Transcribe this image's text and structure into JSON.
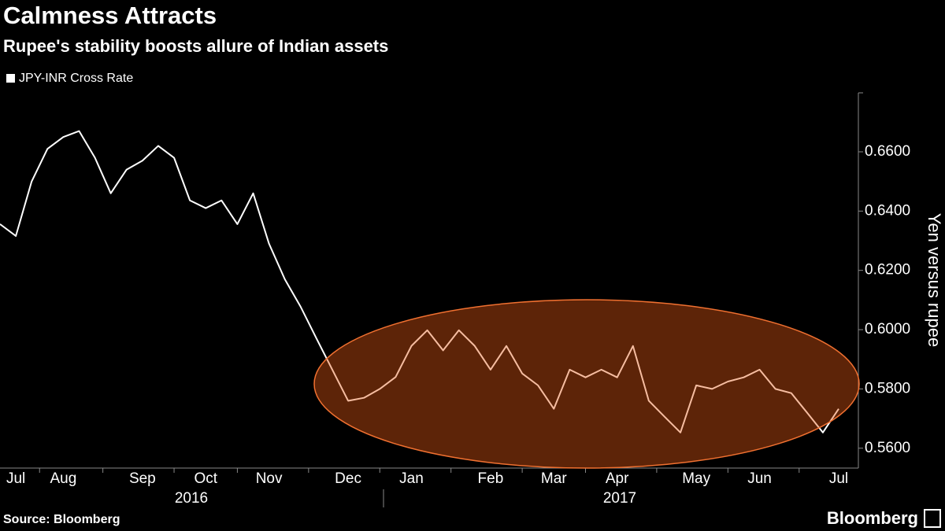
{
  "chart_data": {
    "type": "line",
    "title": "Calmness Attracts",
    "subtitle": "Rupee's stability boosts allure of Indian assets",
    "y_axis_label": "Yen versus rupee",
    "source": "Source: Bloomberg",
    "brand": "Bloomberg",
    "year_labels": [
      "2016",
      "2017"
    ],
    "categories": [
      null,
      "Jul",
      null,
      null,
      "Aug",
      null,
      null,
      null,
      null,
      "Sep",
      null,
      null,
      null,
      "Oct",
      null,
      null,
      null,
      "Nov",
      null,
      null,
      null,
      null,
      "Dec",
      null,
      null,
      null,
      "Jan",
      null,
      null,
      null,
      null,
      "Feb",
      null,
      null,
      null,
      "Mar",
      null,
      null,
      null,
      "Apr",
      null,
      null,
      null,
      null,
      "May",
      null,
      null,
      null,
      "Jun",
      null,
      null,
      null,
      null,
      "Jul"
    ],
    "series": [
      {
        "name": "JPY-INR Cross Rate",
        "color": "#ffffff",
        "values": [
          0.6356,
          0.6316,
          0.65,
          0.661,
          0.665,
          0.667,
          0.658,
          0.646,
          0.654,
          0.657,
          0.662,
          0.658,
          0.6436,
          0.641,
          0.6436,
          0.6356,
          0.646,
          0.629,
          0.617,
          0.6077,
          0.597,
          0.5865,
          0.576,
          0.577,
          0.58,
          0.584,
          0.5945,
          0.5998,
          0.593,
          0.5998,
          0.5945,
          0.5865,
          0.5945,
          0.5852,
          0.5812,
          0.5733,
          0.5865,
          0.5839,
          0.5865,
          0.5839,
          0.5945,
          0.576,
          0.5706,
          0.5653,
          0.5812,
          0.58,
          0.5825,
          0.5839,
          0.5865,
          0.58,
          0.5786,
          0.572,
          0.5653,
          0.5733
        ]
      }
    ],
    "ylim": [
      0.5533,
      0.6799
    ],
    "yticks": [
      {
        "value": 0.56,
        "label": "0.5600"
      },
      {
        "value": 0.58,
        "label": "0.5800"
      },
      {
        "value": 0.6,
        "label": "0.6000"
      },
      {
        "value": 0.62,
        "label": "0.6200"
      },
      {
        "value": 0.64,
        "label": "0.6400"
      },
      {
        "value": 0.66,
        "label": "0.6600"
      }
    ],
    "legend": "top-left"
  }
}
